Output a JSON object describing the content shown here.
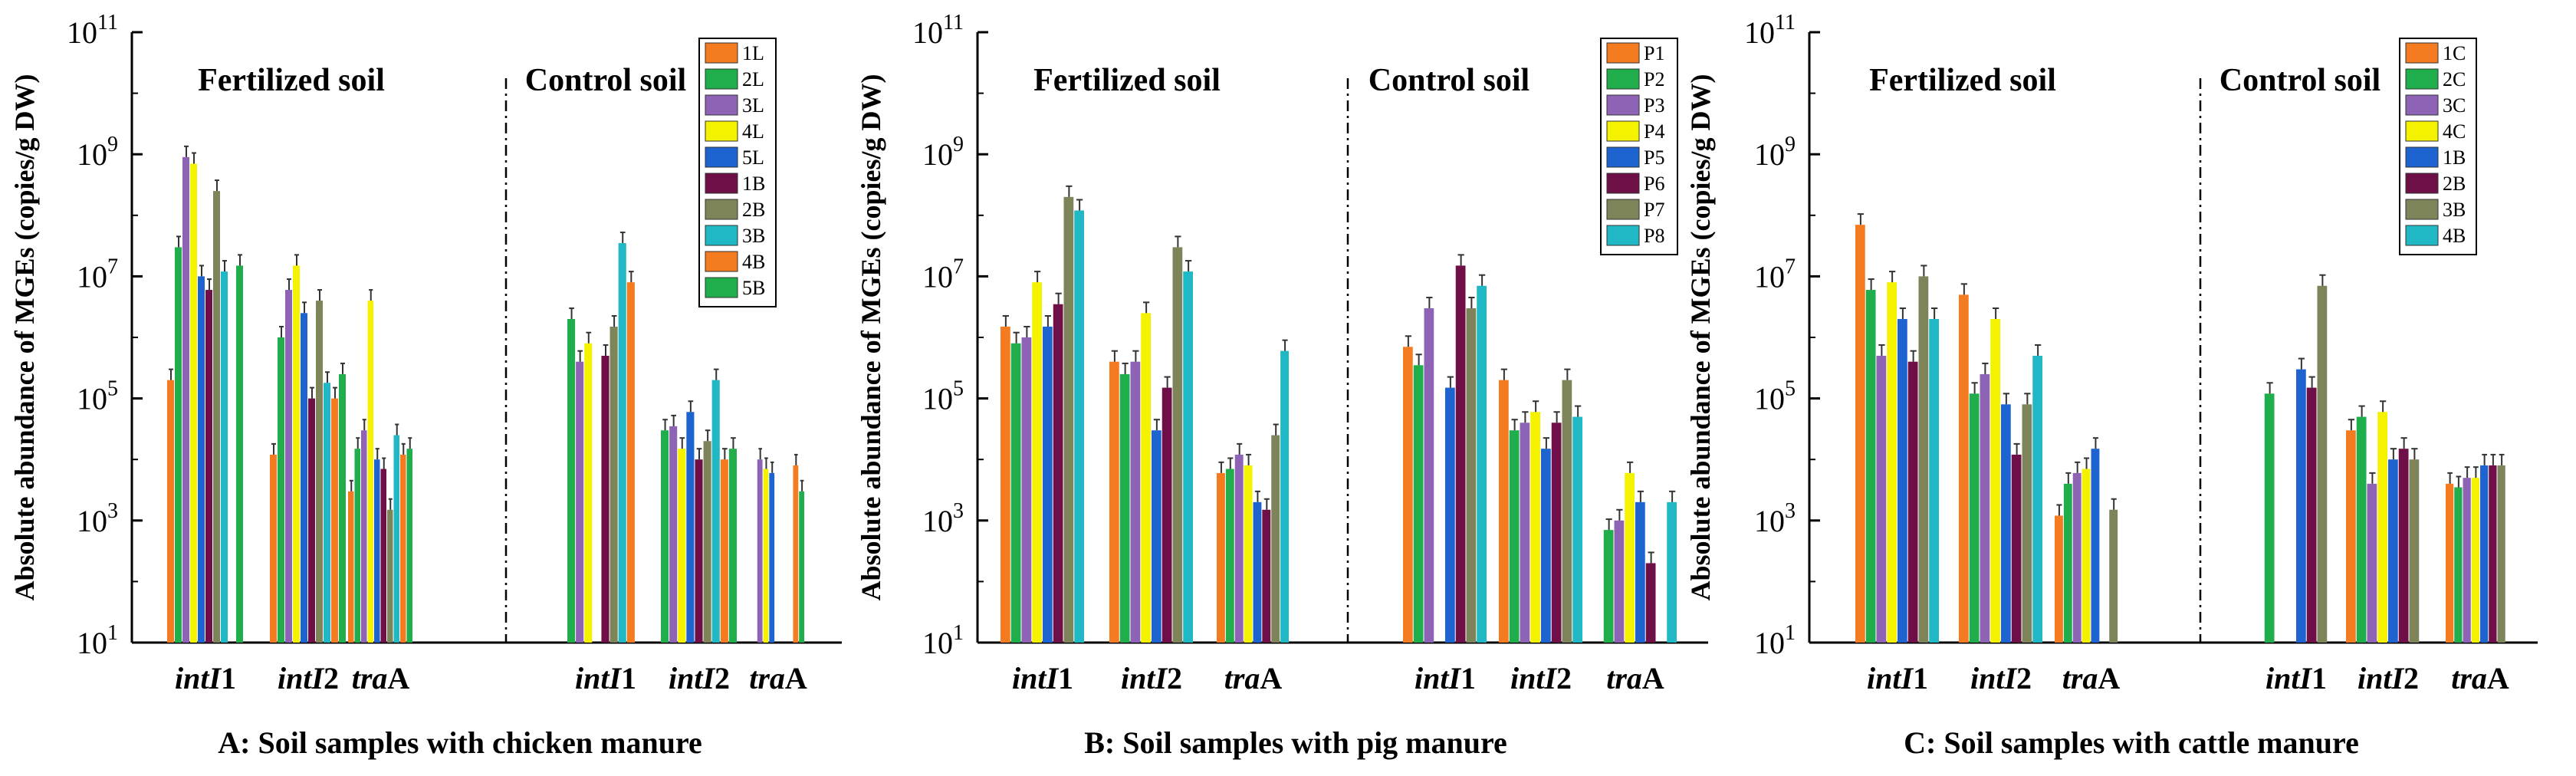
{
  "chart_data": [
    {
      "type": "bar",
      "panel": "A",
      "caption": "A: Soil samples with chicken manure",
      "ylabel": "Absolute abundance of MGEs (copies/g DW)",
      "yscale": "log",
      "ylim": [
        10,
        100000000000
      ],
      "ytick_base": "10",
      "ytick_exponents": [
        "1",
        "3",
        "5",
        "7",
        "9",
        "11"
      ],
      "section_labels": [
        "Fertilized soil",
        "Control soil"
      ],
      "groups": [
        {
          "gene_italic": "intI",
          "gene_plain": "1"
        },
        {
          "gene_italic": "intI",
          "gene_plain": "2"
        },
        {
          "gene_italic": "tra",
          "gene_plain": "A"
        },
        {
          "gene_italic": "intI",
          "gene_plain": "1"
        },
        {
          "gene_italic": "intI",
          "gene_plain": "2"
        },
        {
          "gene_italic": "tra",
          "gene_plain": "A"
        }
      ],
      "series": [
        {
          "name": "1L",
          "color": "#F47B20",
          "values": [
            200000,
            12000,
            3000,
            null,
            null,
            null
          ]
        },
        {
          "name": "2L",
          "color": "#1FAE4B",
          "values": [
            30000000,
            1000000,
            15000,
            null,
            null,
            null
          ]
        },
        {
          "name": "3L",
          "color": "#8E63B5",
          "values": [
            900000000,
            6000000,
            30000,
            null,
            null,
            null
          ]
        },
        {
          "name": "4L",
          "color": "#F5F200",
          "values": [
            700000000,
            15000000,
            4000000,
            null,
            null,
            null
          ]
        },
        {
          "name": "5L",
          "color": "#1E64D0",
          "values": [
            10000000,
            2500000,
            10000,
            null,
            null,
            null
          ]
        },
        {
          "name": "1B",
          "color": "#6E0F47",
          "values": [
            6000000,
            100000,
            7000,
            null,
            null,
            null
          ]
        },
        {
          "name": "2B",
          "color": "#7D8459",
          "values": [
            250000000,
            4000000,
            1500,
            null,
            null,
            null
          ]
        },
        {
          "name": "3B",
          "color": "#1FB8C4",
          "values": [
            12000000,
            180000,
            25000,
            null,
            null,
            null
          ]
        },
        {
          "name": "4B",
          "color": "#F47B20",
          "values": [
            null,
            100000,
            12000,
            null,
            null,
            null
          ]
        },
        {
          "name": "5B",
          "color": "#1FAE4B",
          "values": [
            15000000,
            250000,
            15000,
            null,
            null,
            null
          ]
        }
      ],
      "control_bars": [
        {
          "name": "2L",
          "color": "#1FAE4B",
          "values": [
            2000000,
            30000,
            null
          ]
        },
        {
          "name": "3L",
          "color": "#8E63B5",
          "values": [
            400000,
            35000,
            10000
          ]
        },
        {
          "name": "4L",
          "color": "#F5F200",
          "values": [
            800000,
            15000,
            7000
          ]
        },
        {
          "name": "5L",
          "color": "#1E64D0",
          "values": [
            null,
            60000,
            6000
          ]
        },
        {
          "name": "1B",
          "color": "#6E0F47",
          "values": [
            500000,
            10000,
            null
          ]
        },
        {
          "name": "2B",
          "color": "#7D8459",
          "values": [
            1500000,
            20000,
            null
          ]
        },
        {
          "name": "3B",
          "color": "#1FB8C4",
          "values": [
            35000000,
            200000,
            null
          ]
        },
        {
          "name": "4B",
          "color": "#F47B20",
          "values": [
            8000000,
            10000,
            8000
          ]
        },
        {
          "name": "5B",
          "color": "#1FAE4B",
          "values": [
            null,
            15000,
            3000
          ]
        }
      ]
    },
    {
      "type": "bar",
      "panel": "B",
      "caption": "B: Soil samples with pig manure",
      "ylabel": "Absolute abundance of MGEs (copies/g DW)",
      "yscale": "log",
      "ylim": [
        10,
        100000000000
      ],
      "ytick_base": "10",
      "ytick_exponents": [
        "1",
        "3",
        "5",
        "7",
        "9",
        "11"
      ],
      "section_labels": [
        "Fertilized soil",
        "Control soil"
      ],
      "groups": [
        {
          "gene_italic": "intI",
          "gene_plain": "1"
        },
        {
          "gene_italic": "intI",
          "gene_plain": "2"
        },
        {
          "gene_italic": "tra",
          "gene_plain": "A"
        },
        {
          "gene_italic": "intI",
          "gene_plain": "1"
        },
        {
          "gene_italic": "intI",
          "gene_plain": "2"
        },
        {
          "gene_italic": "tra",
          "gene_plain": "A"
        }
      ],
      "series": [
        {
          "name": "P1",
          "color": "#F47B20",
          "values": [
            1500000,
            400000,
            6000,
            null,
            null,
            null
          ]
        },
        {
          "name": "P2",
          "color": "#1FAE4B",
          "values": [
            800000,
            250000,
            7000,
            null,
            null,
            null
          ]
        },
        {
          "name": "P3",
          "color": "#8E63B5",
          "values": [
            1000000,
            400000,
            12000,
            null,
            null,
            null
          ]
        },
        {
          "name": "P4",
          "color": "#F5F200",
          "values": [
            8000000,
            2500000,
            8000,
            null,
            null,
            null
          ]
        },
        {
          "name": "P5",
          "color": "#1E64D0",
          "values": [
            1500000,
            30000,
            2000,
            null,
            null,
            null
          ]
        },
        {
          "name": "P6",
          "color": "#6E0F47",
          "values": [
            3500000,
            150000,
            1500,
            null,
            null,
            null
          ]
        },
        {
          "name": "P7",
          "color": "#7D8459",
          "values": [
            200000000,
            30000000,
            25000,
            null,
            null,
            null
          ]
        },
        {
          "name": "P8",
          "color": "#1FB8C4",
          "values": [
            120000000,
            12000000,
            600000,
            null,
            null,
            null
          ]
        }
      ],
      "control_bars": [
        {
          "name": "P1",
          "color": "#F47B20",
          "values": [
            700000,
            200000,
            null
          ]
        },
        {
          "name": "P2",
          "color": "#1FAE4B",
          "values": [
            350000,
            30000,
            700
          ]
        },
        {
          "name": "P3",
          "color": "#8E63B5",
          "values": [
            3000000,
            40000,
            1000
          ]
        },
        {
          "name": "P4",
          "color": "#F5F200",
          "values": [
            null,
            60000,
            6000
          ]
        },
        {
          "name": "P5",
          "color": "#1E64D0",
          "values": [
            150000,
            15000,
            2000
          ]
        },
        {
          "name": "P6",
          "color": "#6E0F47",
          "values": [
            15000000,
            40000,
            200
          ]
        },
        {
          "name": "P7",
          "color": "#7D8459",
          "values": [
            3000000,
            200000,
            null
          ]
        },
        {
          "name": "P8",
          "color": "#1FB8C4",
          "values": [
            7000000,
            50000,
            2000
          ]
        }
      ]
    },
    {
      "type": "bar",
      "panel": "C",
      "caption": "C: Soil samples with cattle manure",
      "ylabel": "Absolute abundance of MGEs (copies/g DW)",
      "yscale": "log",
      "ylim": [
        10,
        100000000000
      ],
      "ytick_base": "10",
      "ytick_exponents": [
        "1",
        "3",
        "5",
        "7",
        "9",
        "11"
      ],
      "section_labels": [
        "Fertilized soil",
        "Control soil"
      ],
      "groups": [
        {
          "gene_italic": "intI",
          "gene_plain": "1"
        },
        {
          "gene_italic": "intI",
          "gene_plain": "2"
        },
        {
          "gene_italic": "tra",
          "gene_plain": "A"
        },
        {
          "gene_italic": "intI",
          "gene_plain": "1"
        },
        {
          "gene_italic": "intI",
          "gene_plain": "2"
        },
        {
          "gene_italic": "tra",
          "gene_plain": "A"
        }
      ],
      "series": [
        {
          "name": "1C",
          "color": "#F47B20",
          "values": [
            70000000,
            5000000,
            1200,
            null,
            null,
            null
          ]
        },
        {
          "name": "2C",
          "color": "#1FAE4B",
          "values": [
            6000000,
            120000,
            4000,
            null,
            null,
            null
          ]
        },
        {
          "name": "3C",
          "color": "#8E63B5",
          "values": [
            500000,
            250000,
            6000,
            null,
            null,
            null
          ]
        },
        {
          "name": "4C",
          "color": "#F5F200",
          "values": [
            8000000,
            2000000,
            7000,
            null,
            null,
            null
          ]
        },
        {
          "name": "1B",
          "color": "#1E64D0",
          "values": [
            2000000,
            80000,
            15000,
            null,
            null,
            null
          ]
        },
        {
          "name": "2B",
          "color": "#6E0F47",
          "values": [
            400000,
            12000,
            null,
            null,
            null,
            null
          ]
        },
        {
          "name": "3B",
          "color": "#7D8459",
          "values": [
            10000000,
            80000,
            1500,
            null,
            null,
            null
          ]
        },
        {
          "name": "4B",
          "color": "#1FB8C4",
          "values": [
            2000000,
            500000,
            null,
            null,
            null,
            null
          ]
        }
      ],
      "control_bars": [
        {
          "name": "1C",
          "color": "#F47B20",
          "values": [
            null,
            30000,
            4000
          ]
        },
        {
          "name": "2C",
          "color": "#1FAE4B",
          "values": [
            120000,
            50000,
            3500
          ]
        },
        {
          "name": "3C",
          "color": "#8E63B5",
          "values": [
            null,
            4000,
            5000
          ]
        },
        {
          "name": "4C",
          "color": "#F5F200",
          "values": [
            null,
            60000,
            5000
          ]
        },
        {
          "name": "1B",
          "color": "#1E64D0",
          "values": [
            300000,
            10000,
            8000
          ]
        },
        {
          "name": "2B",
          "color": "#6E0F47",
          "values": [
            150000,
            15000,
            8000
          ]
        },
        {
          "name": "3B",
          "color": "#7D8459",
          "values": [
            7000000,
            10000,
            8000
          ]
        },
        {
          "name": "4B",
          "color": "#1FB8C4",
          "values": [
            null,
            null,
            null
          ]
        }
      ]
    }
  ]
}
